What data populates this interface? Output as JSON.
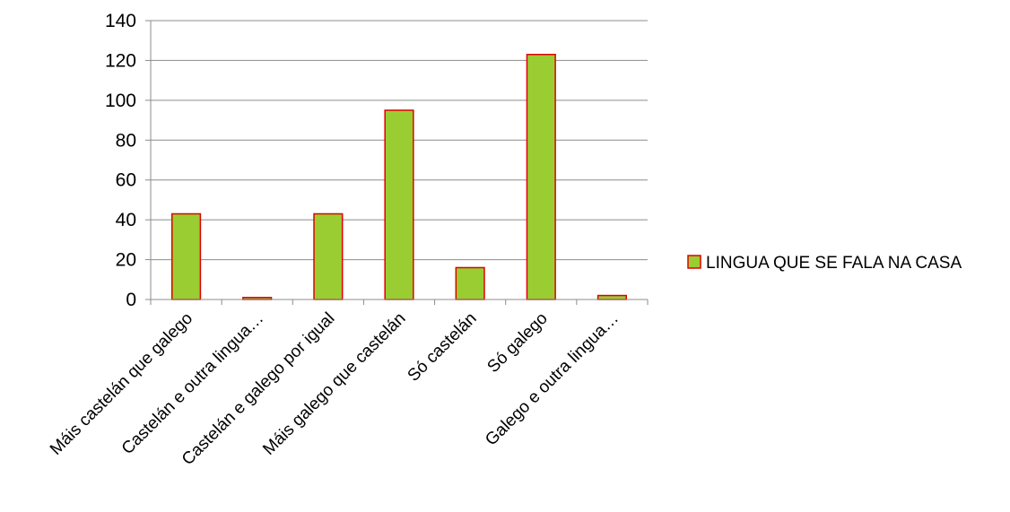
{
  "chart_data": {
    "type": "bar",
    "categories": [
      "Máis castelán que galego",
      "Castelán e outra lingua…",
      "Castelán e galego por igual",
      "Máis galego que castelán",
      "Só castelán",
      "Só galego",
      "Galego e outra lingua…"
    ],
    "series": [
      {
        "name": "LINGUA QUE SE FALA NA CASA",
        "values": [
          43,
          1,
          43,
          95,
          16,
          123,
          2
        ]
      }
    ],
    "ylim": [
      0,
      140
    ],
    "yticks": [
      "0",
      "20",
      "40",
      "60",
      "80",
      "100",
      "120",
      "140"
    ],
    "grid": true,
    "legend_position": "right",
    "colors": {
      "bar_fill": "#9ACD32",
      "bar_stroke": "#E00000",
      "gridline": "#8C8C8C",
      "axis": "#8C8C8C"
    }
  }
}
